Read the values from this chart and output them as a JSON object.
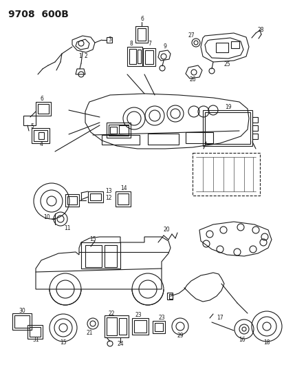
{
  "title": "9708  600B",
  "bg_color": "#ffffff",
  "line_color": "#1a1a1a",
  "figsize": [
    4.14,
    5.33
  ],
  "dpi": 100
}
